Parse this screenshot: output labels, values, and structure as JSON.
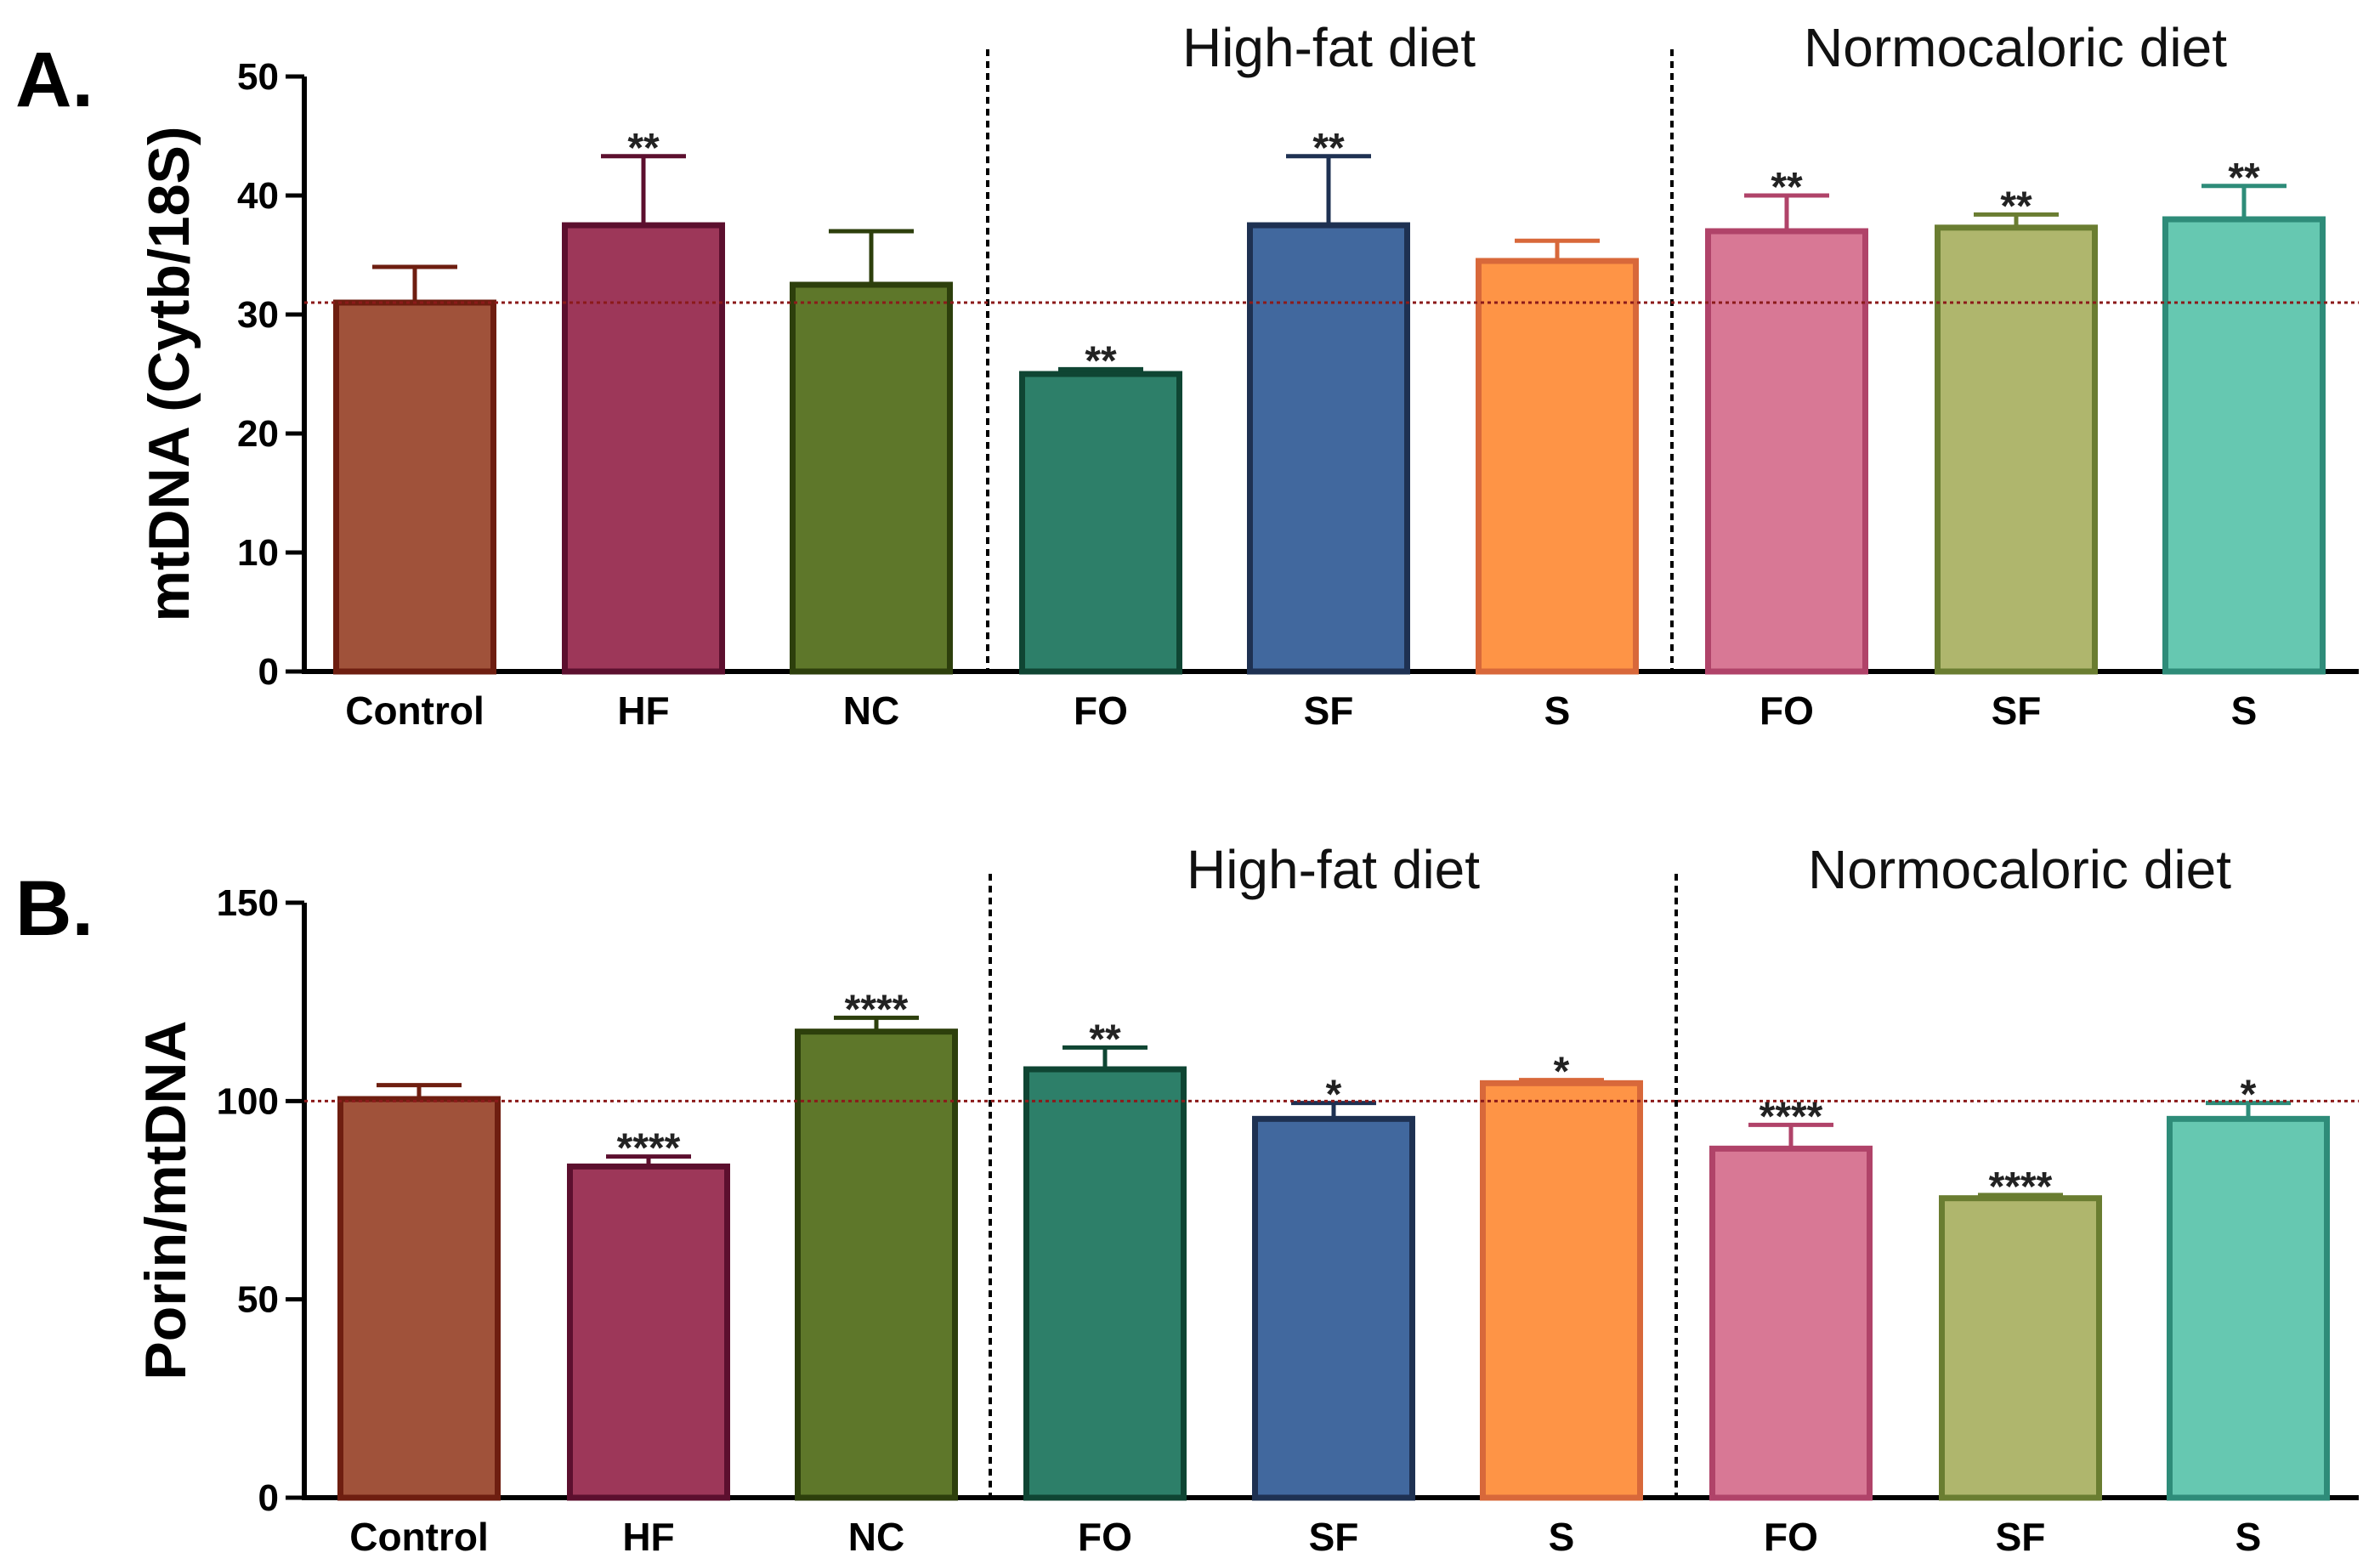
{
  "colors": {
    "reference_line": "#8b1a1a",
    "axis": "#000000",
    "divider": "#000000"
  },
  "chart_data": [
    {
      "panel": "A.",
      "type": "bar",
      "ylabel": "mtDNA (Cytb/18S)",
      "ylim": [
        0,
        50
      ],
      "yticks": [
        0,
        10,
        20,
        30,
        40,
        50
      ],
      "reference_value": 31,
      "categories": [
        "Control",
        "HF",
        "NC",
        "FO",
        "SF",
        "S",
        "FO",
        "SF",
        "S"
      ],
      "values": [
        31,
        37.5,
        32.5,
        25,
        37.5,
        34.5,
        37,
        37.3,
        38
      ],
      "errors": [
        3,
        5.8,
        4.5,
        0.4,
        5.8,
        1.7,
        3,
        1.1,
        2.8
      ],
      "significance": [
        "",
        "**",
        "",
        "**",
        "**",
        "",
        "**",
        "**",
        "**"
      ],
      "group_labels": [
        {
          "text": "High-fat diet",
          "categories": [
            3,
            4,
            5
          ]
        },
        {
          "text": "Normocaloric diet",
          "categories": [
            6,
            7,
            8
          ]
        }
      ]
    },
    {
      "panel": "B.",
      "type": "bar",
      "ylabel": "Porin/mtDNA",
      "ylim": [
        0,
        150
      ],
      "yticks": [
        0,
        50,
        100,
        150
      ],
      "reference_value": 100,
      "categories": [
        "Control",
        "HF",
        "NC",
        "FO",
        "SF",
        "S",
        "FO",
        "SF",
        "S"
      ],
      "values": [
        100.5,
        83.5,
        117.5,
        108,
        95.5,
        104.5,
        88,
        75.5,
        95.5
      ],
      "errors": [
        3.5,
        2.5,
        3.5,
        5.5,
        4,
        0.8,
        6,
        0.8,
        4
      ],
      "significance": [
        "",
        "****",
        "****",
        "**",
        "*",
        "*",
        "****",
        "****",
        "*"
      ],
      "group_labels": [
        {
          "text": "High-fat diet",
          "categories": [
            3,
            4,
            5
          ]
        },
        {
          "text": "Normocaloric diet",
          "categories": [
            6,
            7,
            8
          ]
        }
      ]
    }
  ],
  "bar_styles": [
    {
      "fill": "#a0523a",
      "stroke": "#6e1e10"
    },
    {
      "fill": "#9d3759",
      "stroke": "#5c0f2e"
    },
    {
      "fill": "#5e772a",
      "stroke": "#2d3f0c"
    },
    {
      "fill": "#2d7f69",
      "stroke": "#0f4533"
    },
    {
      "fill": "#41689e",
      "stroke": "#1e3152"
    },
    {
      "fill": "#fe9446",
      "stroke": "#d8683a"
    },
    {
      "fill": "#d87895",
      "stroke": "#b04369"
    },
    {
      "fill": "#afb66d",
      "stroke": "#6a7d31"
    },
    {
      "fill": "#66c8b1",
      "stroke": "#2e8c79"
    }
  ]
}
